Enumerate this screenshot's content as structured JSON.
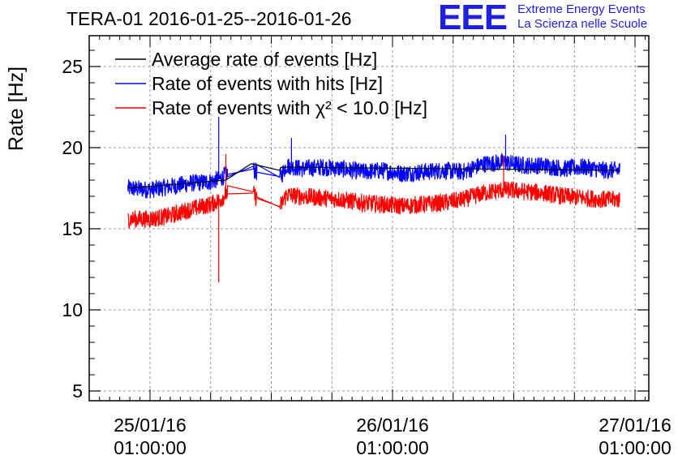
{
  "logo": {
    "letters": "EEE",
    "line1": "Extreme Energy Events",
    "line2": "La Scienza nelle Scuole",
    "color": "#1f1fe0"
  },
  "chart_data": {
    "type": "line",
    "title": "TERA-01 2016-01-25--2016-01-26",
    "ylabel": "Rate [Hz]",
    "xlabel": "",
    "ylim": [
      4.5,
      27
    ],
    "xlim_hours": [
      -5,
      49
    ],
    "yticks": [
      5,
      10,
      15,
      20,
      25
    ],
    "xtick_labels": [
      {
        "hour": 0,
        "date": "25/01/16",
        "time": "01:00:00"
      },
      {
        "hour": 24,
        "date": "26/01/16",
        "time": "01:00:00"
      },
      {
        "hour": 48,
        "date": "27/01/16",
        "time": "01:00:00"
      }
    ],
    "grid": true,
    "legend_position": "top-left",
    "series": [
      {
        "name": "Average rate of events [Hz]",
        "color": "#000000",
        "x_hours": [
          -2.2,
          7.5,
          10.0,
          10.1,
          12.8,
          13.0,
          46.5
        ],
        "y": [
          17.5,
          18.0,
          19.0,
          19.0,
          18.6,
          18.8,
          18.6
        ]
      },
      {
        "name": "Rate of events with hits [Hz]",
        "color": "#0000ff",
        "x_hours": [
          -2.2,
          0,
          2,
          4,
          6,
          7,
          7.6,
          8,
          9,
          10,
          10.5,
          12.5,
          13,
          13.5,
          15,
          17,
          19,
          21,
          23,
          25,
          27,
          29,
          31,
          33,
          35,
          37,
          39,
          41,
          43,
          45,
          46.5
        ],
        "y": [
          17.5,
          17.4,
          17.6,
          17.8,
          17.9,
          18.1,
          18.4,
          18.2,
          18.6,
          18.8,
          18.5,
          18.1,
          18.3,
          18.9,
          18.7,
          18.8,
          18.7,
          18.5,
          18.6,
          18.4,
          18.5,
          18.6,
          18.5,
          19.0,
          19.1,
          18.9,
          18.9,
          18.7,
          18.8,
          18.6,
          18.6
        ],
        "spikes": [
          {
            "x_hour": 6.8,
            "y": 21.9
          },
          {
            "x_hour": 35.2,
            "y": 20.8
          },
          {
            "x_hour": 14.0,
            "y": 20.6
          }
        ]
      },
      {
        "name": "Rate of events with χ² < 10.0 [Hz]",
        "color": "#ff0000",
        "x_hours": [
          -2.2,
          0,
          2,
          4,
          6,
          7,
          7.6,
          8,
          9,
          10,
          10.5,
          12.5,
          13,
          13.5,
          15,
          17,
          19,
          21,
          23,
          25,
          27,
          29,
          31,
          33,
          35,
          37,
          39,
          41,
          43,
          45,
          46.5
        ],
        "y": [
          15.6,
          15.6,
          15.8,
          16.2,
          16.5,
          16.8,
          17.2,
          17.0,
          17.3,
          17.4,
          16.9,
          16.2,
          16.5,
          17.1,
          17.0,
          16.9,
          16.8,
          16.6,
          16.5,
          16.4,
          16.5,
          16.6,
          16.8,
          17.2,
          17.4,
          17.3,
          17.2,
          17.0,
          16.9,
          16.8,
          16.8
        ],
        "spikes": [
          {
            "x_hour": 6.8,
            "y": 11.7
          },
          {
            "x_hour": 35.0,
            "y": 19.5
          },
          {
            "x_hour": 7.5,
            "y": 19.6
          }
        ]
      }
    ],
    "noise_amplitude": 0.55
  }
}
